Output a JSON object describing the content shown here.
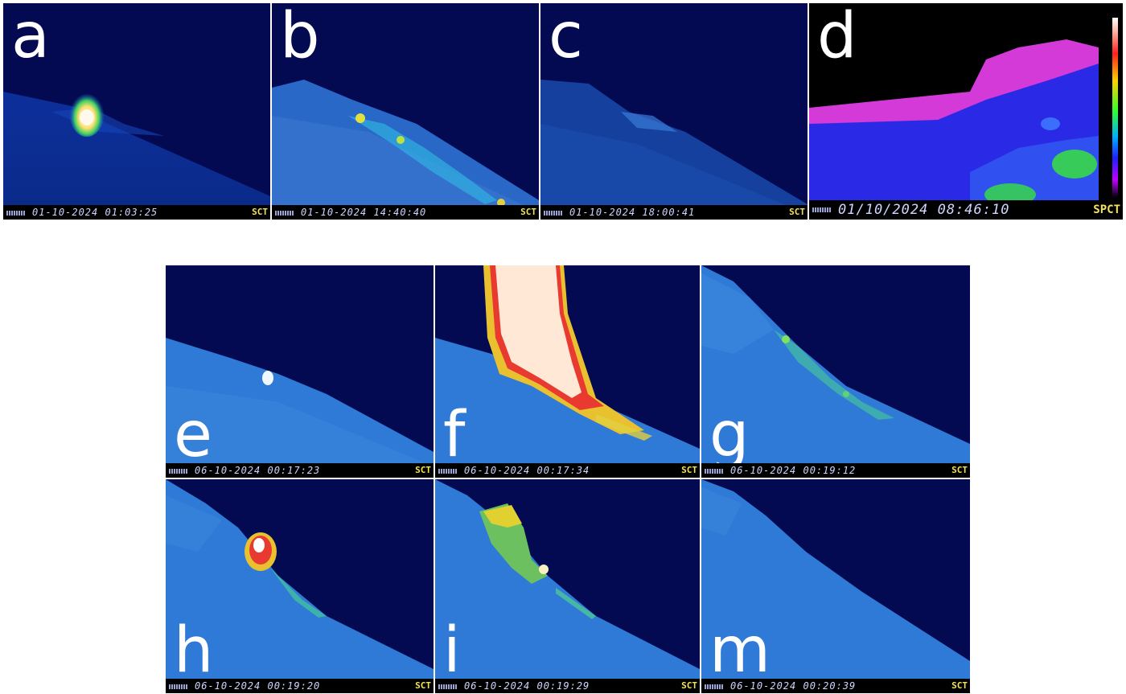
{
  "panels": [
    {
      "id": "a",
      "letter": "a",
      "timestamp": "01-10-2024 01:03:25",
      "tag": "SCT"
    },
    {
      "id": "b",
      "letter": "b",
      "timestamp": "01-10-2024 14:40:40",
      "tag": "SCT"
    },
    {
      "id": "c",
      "letter": "c",
      "timestamp": "01-10-2024 18:00:41",
      "tag": "SCT"
    },
    {
      "id": "d",
      "letter": "d",
      "timestamp": "01/10/2024 08:46:10",
      "tag": "SPCT"
    },
    {
      "id": "e",
      "letter": "e",
      "timestamp": "06-10-2024 00:17:23",
      "tag": "SCT"
    },
    {
      "id": "f",
      "letter": "f",
      "timestamp": "06-10-2024 00:17:34",
      "tag": "SCT"
    },
    {
      "id": "g",
      "letter": "g",
      "timestamp": "06-10-2024 00:19:12",
      "tag": "SCT"
    },
    {
      "id": "h",
      "letter": "h",
      "timestamp": "06-10-2024 00:19:20",
      "tag": "SCT"
    },
    {
      "id": "i",
      "letter": "i",
      "timestamp": "06-10-2024 00:19:29",
      "tag": "SCT"
    },
    {
      "id": "m",
      "letter": "m",
      "timestamp": "06-10-2024 00:20:39",
      "tag": "SCT"
    }
  ]
}
